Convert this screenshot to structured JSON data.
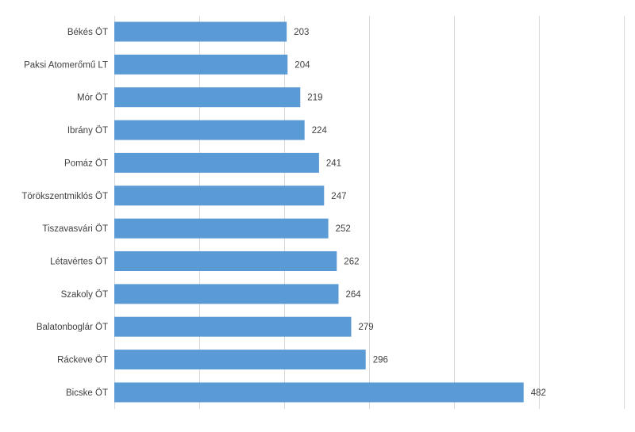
{
  "chart_data": {
    "type": "bar",
    "orientation": "horizontal",
    "categories": [
      "Békés ÖT",
      "Paksi Atomerőmű LT",
      "Mór ÖT",
      "Ibrány ÖT",
      "Pomáz ÖT",
      "Törökszentmiklós ÖT",
      "Tiszavasvári ÖT",
      "Létavértes ÖT",
      "Szakoly ÖT",
      "Balatonboglár ÖT",
      "Ráckeve ÖT",
      "Bicske ÖT"
    ],
    "values": [
      203,
      204,
      219,
      224,
      241,
      247,
      252,
      262,
      264,
      279,
      296,
      482
    ],
    "xlim": [
      0,
      600
    ],
    "grid": true,
    "legend": "none",
    "bar_color": "#5b9bd5",
    "gridline_color": "#d9d9d9"
  }
}
